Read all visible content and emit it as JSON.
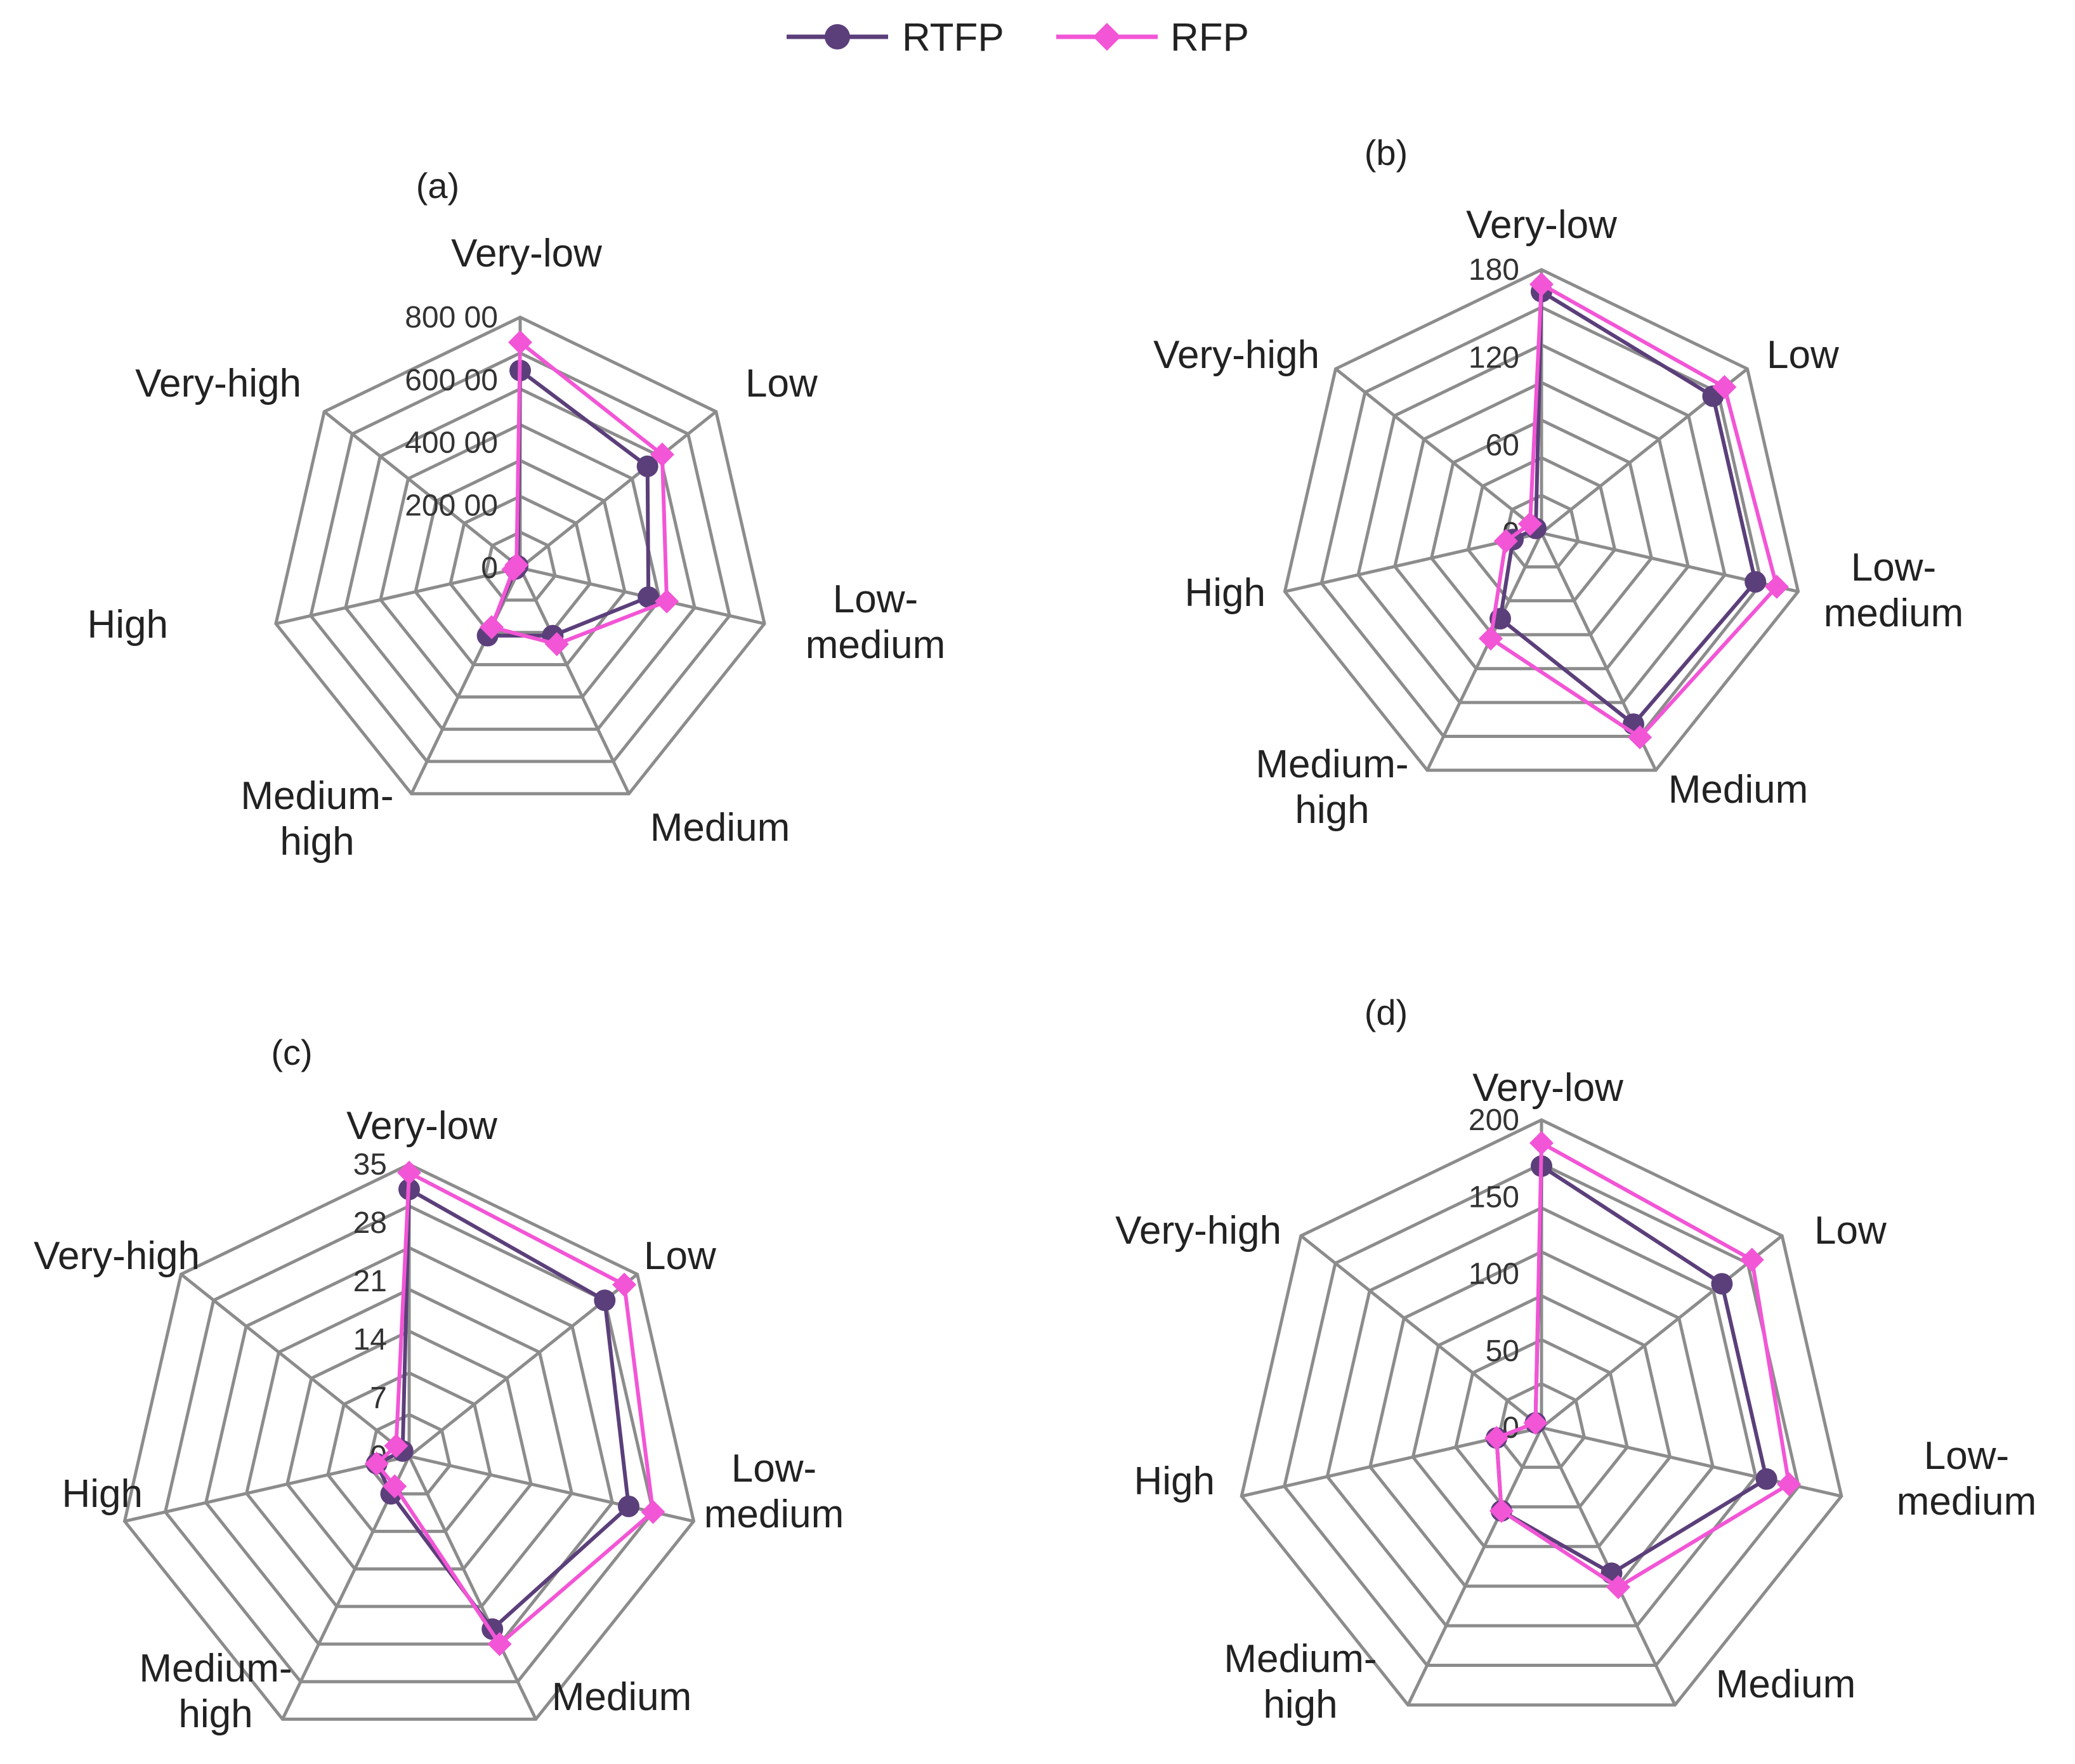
{
  "legend": [
    {
      "name": "RTFP",
      "color": "#5b3f7a",
      "marker": "circle"
    },
    {
      "name": "RFP",
      "color": "#f255d6",
      "marker": "diamond"
    }
  ],
  "chart_data": [
    {
      "type": "radar",
      "title": "(a)",
      "categories": [
        "Very-low",
        "Low",
        "Low-\nmedium",
        "Medium",
        "Medium-\nhigh",
        "High",
        "Very-high"
      ],
      "tick_labels": [
        "0",
        "200 00",
        "400 00",
        "600 00",
        "800 00"
      ],
      "rmax": 80000,
      "series": [
        {
          "name": "RTFP",
          "values": [
            63000,
            52000,
            42000,
            24000,
            24000,
            1500,
            1000
          ]
        },
        {
          "name": "RFP",
          "values": [
            72000,
            58000,
            48000,
            27000,
            21000,
            2200,
            1500
          ]
        }
      ]
    },
    {
      "type": "radar",
      "title": "(b)",
      "categories": [
        "Very-low",
        "Low",
        "Low-\nmedium",
        "Medium",
        "Medium-\nhigh",
        "High",
        "Very-high"
      ],
      "tick_labels": [
        "0",
        "60",
        "120",
        "180"
      ],
      "rmax": 180,
      "series": [
        {
          "name": "RTFP",
          "values": [
            165,
            150,
            150,
            145,
            65,
            20,
            5
          ]
        },
        {
          "name": "RFP",
          "values": [
            170,
            160,
            165,
            155,
            80,
            25,
            10
          ]
        }
      ]
    },
    {
      "type": "radar",
      "title": "(c)",
      "categories": [
        "Very-low",
        "Low",
        "Low-\nmedium",
        "Medium",
        "Medium-\nhigh",
        "High",
        "Very-high"
      ],
      "tick_labels": [
        "0",
        "7",
        "14",
        "21",
        "28",
        "35"
      ],
      "rmax": 35,
      "series": [
        {
          "name": "RTFP",
          "values": [
            32,
            30,
            27,
            23,
            5,
            4,
            1
          ]
        },
        {
          "name": "RFP",
          "values": [
            34,
            33,
            30,
            25,
            4,
            4,
            2
          ]
        }
      ]
    },
    {
      "type": "radar",
      "title": "(d)",
      "categories": [
        "Very-low",
        "Low",
        "Low-\nmedium",
        "Medium",
        "Medium-\nhigh",
        "High",
        "Very-high"
      ],
      "tick_labels": [
        "0",
        "50",
        "100",
        "150",
        "200"
      ],
      "rmax": 200,
      "series": [
        {
          "name": "RTFP",
          "values": [
            170,
            150,
            150,
            105,
            60,
            30,
            5
          ]
        },
        {
          "name": "RFP",
          "values": [
            185,
            175,
            165,
            115,
            60,
            30,
            5
          ]
        }
      ]
    }
  ]
}
